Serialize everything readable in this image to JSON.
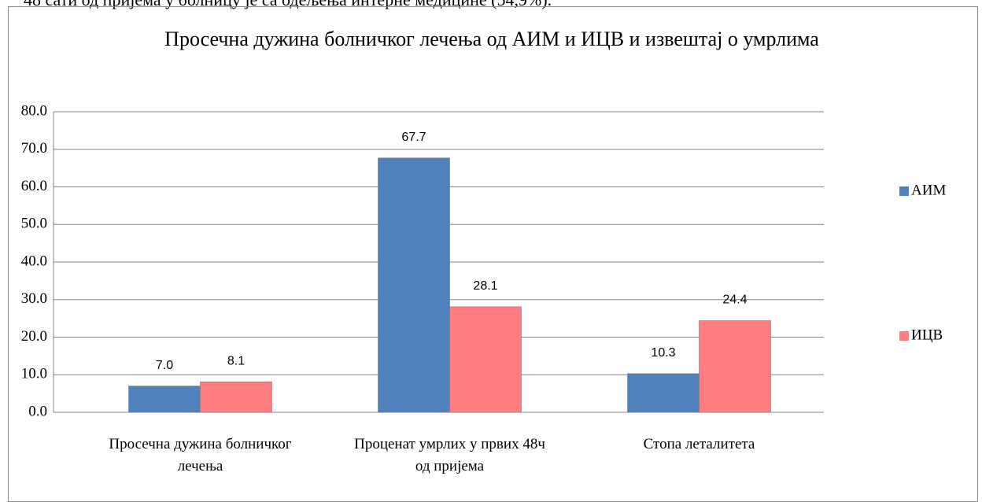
{
  "document_text": "48 сати од пријема у болницу је са одељења интерне медицине (54,9%).",
  "chart_data": {
    "type": "bar",
    "title": "Просечна дужина болничког лечења од АИМ и ИЦВ и извештај о умрлима",
    "categories": [
      "Просечна дужина болничког лечења",
      "Проценат умрлих у првих 48ч од пријема",
      "Стопа леталитета"
    ],
    "series": [
      {
        "name": "АИМ",
        "color": "#4f81bd",
        "values": [
          7.0,
          67.7,
          10.3
        ],
        "value_labels": [
          "7.0",
          "67.7",
          "10.3"
        ]
      },
      {
        "name": "ИЦВ",
        "color": "#ff7c80",
        "values": [
          8.1,
          28.1,
          24.4
        ],
        "value_labels": [
          "8.1",
          "28.1",
          "24.4"
        ]
      }
    ],
    "ylim": [
      0,
      80
    ],
    "yticks": [
      {
        "value": 0,
        "label": "0.0"
      },
      {
        "value": 10,
        "label": "10.0"
      },
      {
        "value": 20,
        "label": "20.0"
      },
      {
        "value": 30,
        "label": "30.0"
      },
      {
        "value": 40,
        "label": "40.0"
      },
      {
        "value": 50,
        "label": "50.0"
      },
      {
        "value": 60,
        "label": "60.0"
      },
      {
        "value": 70,
        "label": "70.0"
      },
      {
        "value": 80,
        "label": "80.0"
      }
    ],
    "grid": true,
    "legend": "right"
  }
}
